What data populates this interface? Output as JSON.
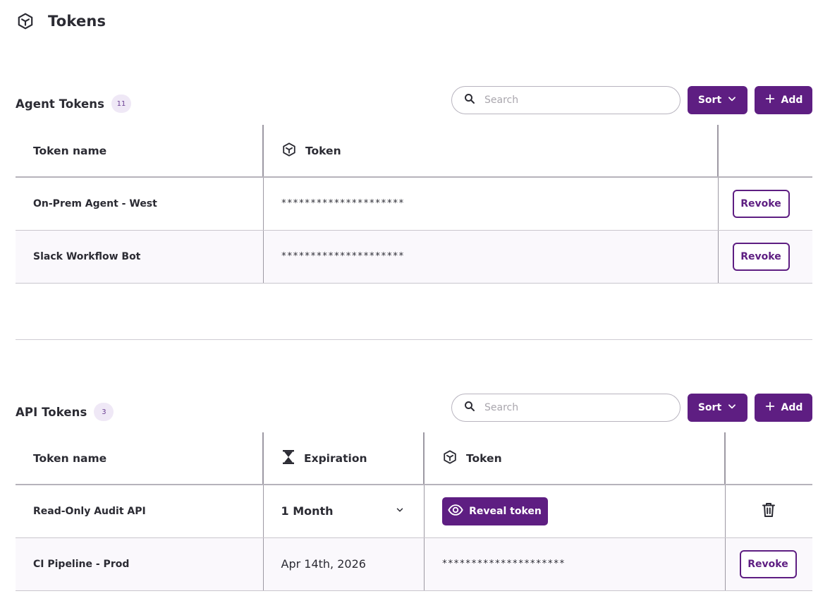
{
  "page": {
    "title": "Tokens",
    "icon": "cube-icon"
  },
  "agent_tokens": {
    "title": "Agent Tokens",
    "count": "11",
    "search_placeholder": "Search",
    "sort_label": "Sort",
    "add_label": "Add",
    "columns": {
      "name": "Token name",
      "token": "Token"
    },
    "rows": [
      {
        "name": "On-Prem Agent - West",
        "token": "*********************",
        "action": "Revoke"
      },
      {
        "name": "Slack Workflow Bot",
        "token": "*********************",
        "action": "Revoke"
      }
    ]
  },
  "api_tokens": {
    "title": "API Tokens",
    "count": "3",
    "search_placeholder": "Search",
    "sort_label": "Sort",
    "add_label": "Add",
    "columns": {
      "name": "Token name",
      "expiration": "Expiration",
      "token": "Token"
    },
    "rows": [
      {
        "name": "Read-Only Audit API",
        "expiration": "1 Month",
        "reveal_label": "Reveal token",
        "action_icon": "trash-icon"
      },
      {
        "name": "CI Pipeline - Prod",
        "expiration": "Apr 14th, 2026",
        "token": "*********************",
        "action": "Revoke"
      }
    ]
  },
  "colors": {
    "primary": "#5e1e82",
    "badge_bg": "#efe8f6",
    "row_alt": "#faf8fc"
  }
}
